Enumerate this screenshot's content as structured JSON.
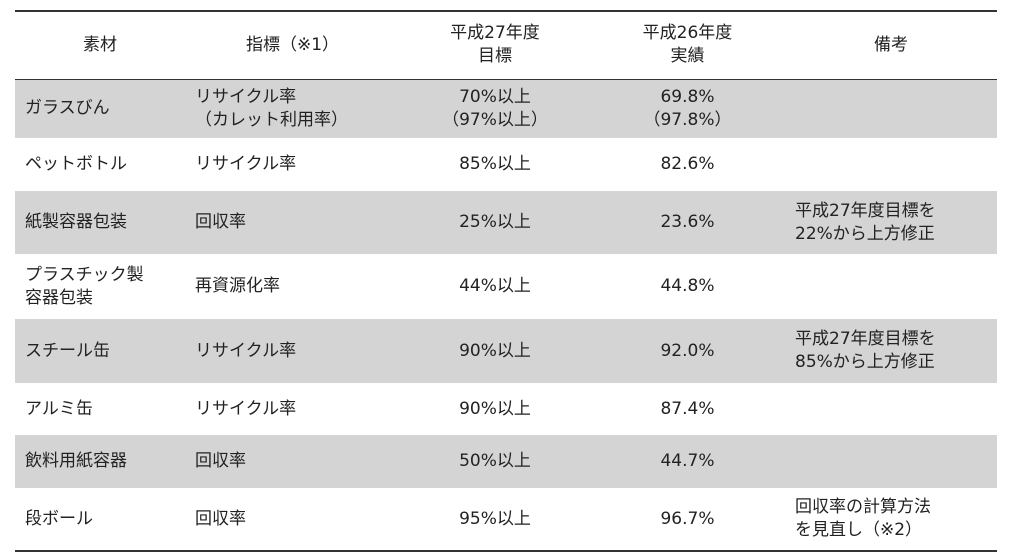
{
  "table": {
    "header": [
      "素材",
      "指標（※1）",
      "平成27年度\n目標",
      "平成26年度\n実績",
      "備考"
    ],
    "rows": [
      {
        "material": "ガラスびん",
        "indicator": "リサイクル率\n（カレット利用率）",
        "target": "70%以上\n（97%以上）",
        "actual": "69.8%\n（97.8%）"
      },
      {
        "material": "ペットボトル",
        "indicator": "リサイクル率",
        "target": "85%以上",
        "actual": "82.6%"
      },
      {
        "material": "紙製容器包装",
        "indicator": "回収率",
        "target": "25%以上",
        "actual": "23.6%",
        "note": "平成27年度目標を\n22%から上方修正"
      },
      {
        "material": "プラスチック製\n容器包装",
        "indicator": "再資源化率",
        "target": "44%以上",
        "actual": "44.8%"
      },
      {
        "material": "スチール缶",
        "indicator": "リサイクル率",
        "target": "90%以上",
        "actual": "92.0%",
        "note": "平成27年度目標を\n85%から上方修正"
      },
      {
        "material": "アルミ缶",
        "indicator": "リサイクル率",
        "target": "90%以上",
        "actual": "87.4%"
      },
      {
        "material": "飲料用紙容器",
        "indicator": "回収率",
        "target": "50%以上",
        "actual": "44.7%"
      },
      {
        "material": "段ボール",
        "indicator": "回収率",
        "target": "95%以上",
        "actual": "96.7%",
        "note": "回収率の計算方法\nを見直し（※2）"
      }
    ]
  }
}
